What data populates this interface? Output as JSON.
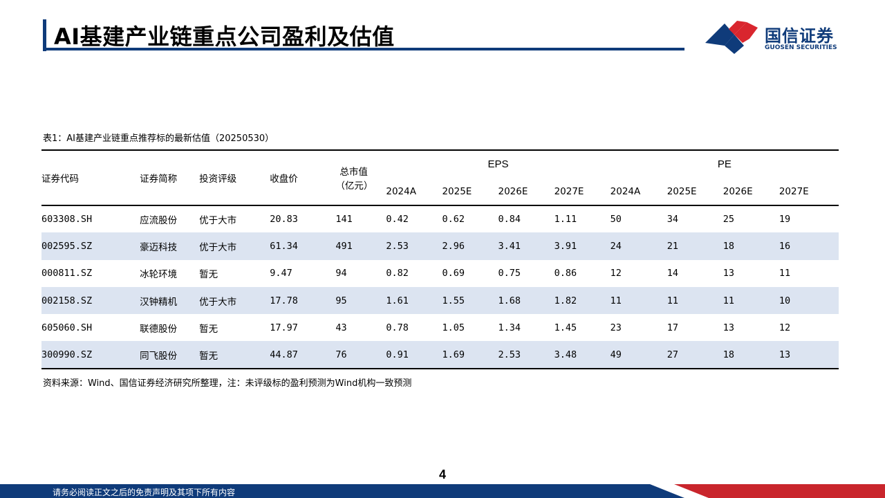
{
  "header": {
    "title": "AI基建产业链重点公司盈利及估值",
    "logo_cn": "国信证券",
    "logo_en": "GUOSEN SECURITIES"
  },
  "table": {
    "caption": "表1：AI基建产业链重点推荐标的最新估值（20250530）",
    "headers": {
      "code": "证券代码",
      "name": "证券简称",
      "rating": "投资评级",
      "close": "收盘价",
      "mcap_line1": "总市值",
      "mcap_line2": "（亿元）",
      "eps_group": "EPS",
      "pe_group": "PE",
      "years": [
        "2024A",
        "2025E",
        "2026E",
        "2027E"
      ]
    },
    "rows": [
      {
        "code": "603308.SH",
        "name": "应流股份",
        "rating": "优于大市",
        "close": "20.83",
        "mcap": "141",
        "eps": [
          "0.42",
          "0.62",
          "0.84",
          "1.11"
        ],
        "pe": [
          "50",
          "34",
          "25",
          "19"
        ]
      },
      {
        "code": "002595.SZ",
        "name": "豪迈科技",
        "rating": "优于大市",
        "close": "61.34",
        "mcap": "491",
        "eps": [
          "2.53",
          "2.96",
          "3.41",
          "3.91"
        ],
        "pe": [
          "24",
          "21",
          "18",
          "16"
        ]
      },
      {
        "code": "000811.SZ",
        "name": "冰轮环境",
        "rating": "暂无",
        "close": "9.47",
        "mcap": "94",
        "eps": [
          "0.82",
          "0.69",
          "0.75",
          "0.86"
        ],
        "pe": [
          "12",
          "14",
          "13",
          "11"
        ]
      },
      {
        "code": "002158.SZ",
        "name": "汉钟精机",
        "rating": "优于大市",
        "close": "17.78",
        "mcap": "95",
        "eps": [
          "1.61",
          "1.55",
          "1.68",
          "1.82"
        ],
        "pe": [
          "11",
          "11",
          "11",
          "10"
        ]
      },
      {
        "code": "605060.SH",
        "name": "联德股份",
        "rating": "暂无",
        "close": "17.97",
        "mcap": "43",
        "eps": [
          "0.78",
          "1.05",
          "1.34",
          "1.45"
        ],
        "pe": [
          "23",
          "17",
          "13",
          "12"
        ]
      },
      {
        "code": "300990.SZ",
        "name": "同飞股份",
        "rating": "暂无",
        "close": "44.87",
        "mcap": "76",
        "eps": [
          "0.91",
          "1.69",
          "2.53",
          "3.48"
        ],
        "pe": [
          "49",
          "27",
          "18",
          "13"
        ]
      }
    ],
    "source": "资料来源：Wind、国信证券经济研究所整理，注：未评级标的盈利预测为Wind机构一致预测"
  },
  "page_number": "4",
  "footer": {
    "disclaimer": "请务必阅读正文之后的免责声明及其项下所有内容"
  },
  "colors": {
    "brand_blue": "#0f3b7a",
    "brand_red": "#d9262e",
    "row_stripe": "#dce4f1"
  }
}
